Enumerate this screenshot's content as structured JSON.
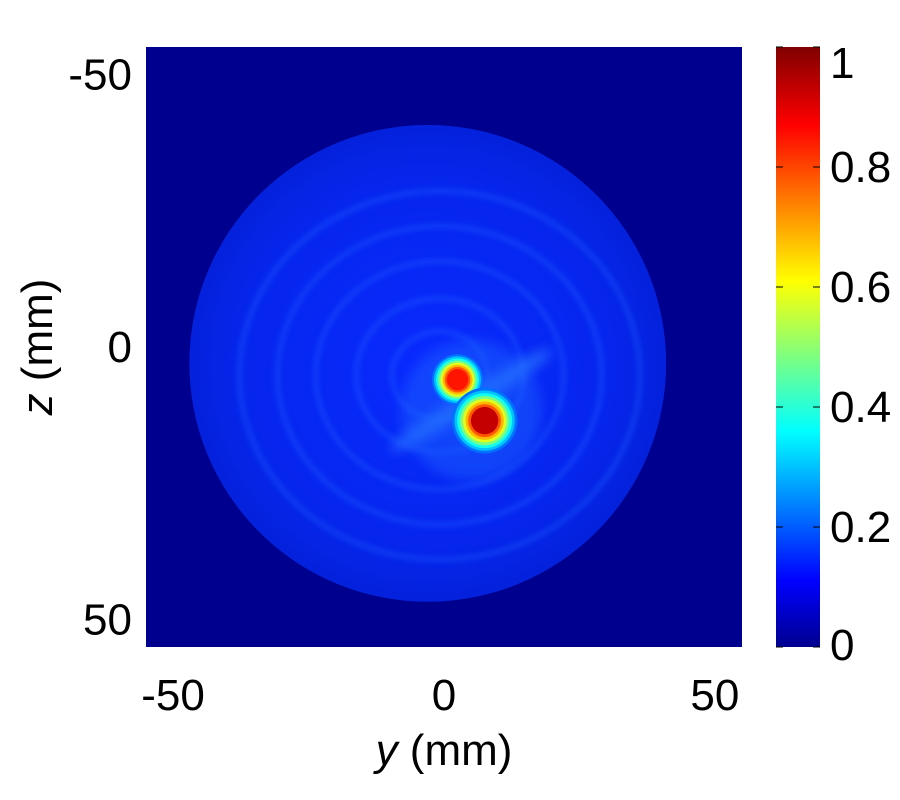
{
  "chart_data": {
    "type": "heatmap",
    "title": "",
    "xlabel": {
      "var": "y",
      "unit": " (mm)"
    },
    "ylabel": {
      "var": "z",
      "unit": " (mm)"
    },
    "xlim": [
      -55,
      55
    ],
    "ylim": [
      -55,
      55
    ],
    "y_axis_reversed": true,
    "x_ticks": [
      {
        "value": -50,
        "label": "-50"
      },
      {
        "value": 0,
        "label": "0"
      },
      {
        "value": 50,
        "label": "50"
      }
    ],
    "y_ticks": [
      {
        "value": -50,
        "label": "-50"
      },
      {
        "value": 0,
        "label": "0"
      },
      {
        "value": 50,
        "label": "50"
      }
    ],
    "colormap": "jet",
    "background_value": 0,
    "colorbar": {
      "range": [
        0,
        1
      ],
      "ticks": [
        {
          "value": 0,
          "label": "0"
        },
        {
          "value": 0.2,
          "label": "0.2"
        },
        {
          "value": 0.4,
          "label": "0.4"
        },
        {
          "value": 0.6,
          "label": "0.6"
        },
        {
          "value": 0.8,
          "label": "0.8"
        },
        {
          "value": 1,
          "label": "1"
        }
      ]
    },
    "field_of_view": {
      "center": [
        -3,
        3
      ],
      "radius": 44,
      "base_value": 0.12
    },
    "hotspots": [
      {
        "y": 2.5,
        "z": 6,
        "radius": 3.5,
        "peak": 0.85
      },
      {
        "y": 7.5,
        "z": 13.5,
        "radius": 4.5,
        "peak": 0.93
      }
    ],
    "grid": false
  }
}
